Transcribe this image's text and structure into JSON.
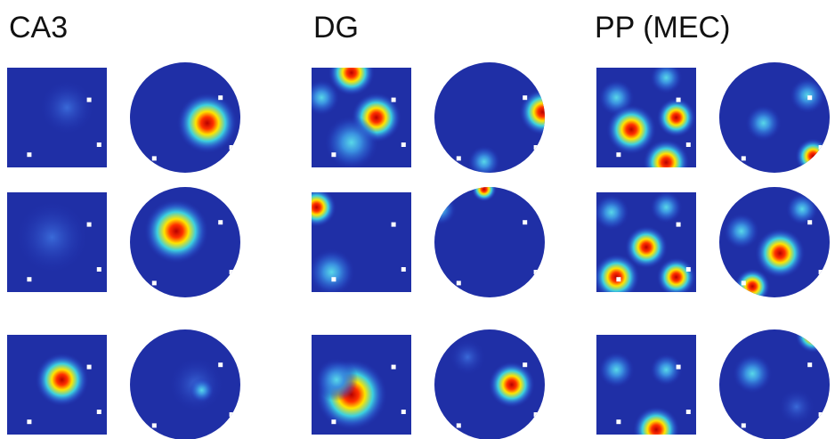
{
  "panels": [
    {
      "label": "CA3"
    },
    {
      "label": "DG"
    },
    {
      "label": "PP (MEC)"
    }
  ]
}
